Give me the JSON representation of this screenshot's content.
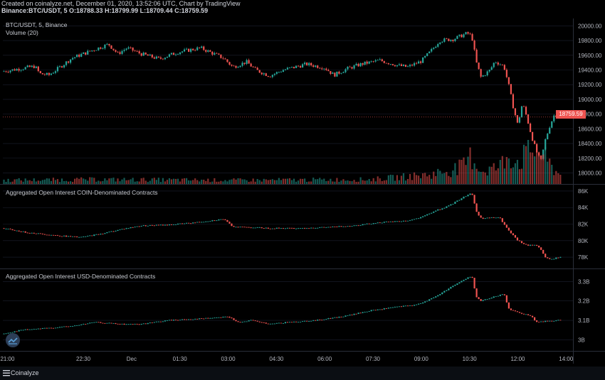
{
  "meta": {
    "line1": "Created on coinalyze.net, December 01, 2020, 13:52:06 UTC, Chart by TradingView",
    "line2": "Binance:BTC/USDT, 5 O:18788.33 H:18799.99 L:18709.44 C:18759.59"
  },
  "footer": {
    "brand": "Coinalyze"
  },
  "colors": {
    "up": "#26a69a",
    "down": "#ef5350",
    "grid": "#1c2030",
    "bg": "#000000"
  },
  "chart_data": [
    {
      "type": "candlestick",
      "title": "BTC/USDT, 5, Binance",
      "subtitle": "Volume (20)",
      "ylim": [
        17850,
        20100
      ],
      "yticks": [
        {
          "v": 20000,
          "label": "20000.00"
        },
        {
          "v": 19800,
          "label": "19800.00"
        },
        {
          "v": 19600,
          "label": "19600.00"
        },
        {
          "v": 19400,
          "label": "19400.00"
        },
        {
          "v": 19200,
          "label": "19200.00"
        },
        {
          "v": 19000,
          "label": "19000.00"
        },
        {
          "v": 18800,
          "label": "18800.00"
        },
        {
          "v": 18600,
          "label": "18600.00"
        },
        {
          "v": 18400,
          "label": "18400.00"
        },
        {
          "v": 18200,
          "label": "18200.00"
        },
        {
          "v": 18000,
          "label": "18000.00"
        }
      ],
      "last_price": 18759.59,
      "last_price_label": "18759.59",
      "series": [
        {
          "t": 0,
          "v": 19380
        },
        {
          "t": 4,
          "v": 19420
        },
        {
          "t": 7,
          "v": 19450
        },
        {
          "t": 8,
          "v": 19350
        },
        {
          "t": 10,
          "v": 19330
        },
        {
          "t": 12,
          "v": 19420
        },
        {
          "t": 15,
          "v": 19560
        },
        {
          "t": 20,
          "v": 19680
        },
        {
          "t": 23,
          "v": 19750
        },
        {
          "t": 25,
          "v": 19620
        },
        {
          "t": 27,
          "v": 19700
        },
        {
          "t": 30,
          "v": 19620
        },
        {
          "t": 34,
          "v": 19550
        },
        {
          "t": 38,
          "v": 19640
        },
        {
          "t": 43,
          "v": 19700
        },
        {
          "t": 48,
          "v": 19560
        },
        {
          "t": 50,
          "v": 19440
        },
        {
          "t": 53,
          "v": 19510
        },
        {
          "t": 55,
          "v": 19400
        },
        {
          "t": 58,
          "v": 19320
        },
        {
          "t": 61,
          "v": 19400
        },
        {
          "t": 66,
          "v": 19480
        },
        {
          "t": 70,
          "v": 19430
        },
        {
          "t": 72,
          "v": 19330
        },
        {
          "t": 75,
          "v": 19420
        },
        {
          "t": 78,
          "v": 19480
        },
        {
          "t": 82,
          "v": 19530
        },
        {
          "t": 86,
          "v": 19460
        },
        {
          "t": 88,
          "v": 19440
        },
        {
          "t": 91,
          "v": 19520
        },
        {
          "t": 93,
          "v": 19650
        },
        {
          "t": 95,
          "v": 19800
        },
        {
          "t": 98,
          "v": 19820
        },
        {
          "t": 101,
          "v": 19900
        },
        {
          "t": 102,
          "v": 19860
        },
        {
          "t": 103,
          "v": 19500
        },
        {
          "t": 104,
          "v": 19300
        },
        {
          "t": 106,
          "v": 19400
        },
        {
          "t": 107,
          "v": 19520
        },
        {
          "t": 109,
          "v": 19450
        },
        {
          "t": 110,
          "v": 19200
        },
        {
          "t": 111,
          "v": 18900
        },
        {
          "t": 112,
          "v": 18650
        },
        {
          "t": 113,
          "v": 18950
        },
        {
          "t": 114,
          "v": 18750
        },
        {
          "t": 115,
          "v": 18500
        },
        {
          "t": 116,
          "v": 18300
        },
        {
          "t": 117,
          "v": 18150
        },
        {
          "t": 118,
          "v": 18450
        },
        {
          "t": 119,
          "v": 18650
        },
        {
          "t": 120,
          "v": 18800
        },
        {
          "t": 121,
          "v": 18760
        }
      ],
      "volume": [
        {
          "t": 0,
          "v": 0.1
        },
        {
          "t": 20,
          "v": 0.12
        },
        {
          "t": 50,
          "v": 0.1
        },
        {
          "t": 80,
          "v": 0.12
        },
        {
          "t": 93,
          "v": 0.25
        },
        {
          "t": 100,
          "v": 0.45
        },
        {
          "t": 102,
          "v": 0.75
        },
        {
          "t": 104,
          "v": 0.35
        },
        {
          "t": 108,
          "v": 0.45
        },
        {
          "t": 110,
          "v": 0.8
        },
        {
          "t": 112,
          "v": 0.6
        },
        {
          "t": 116,
          "v": 1.0
        },
        {
          "t": 118,
          "v": 0.65
        },
        {
          "t": 121,
          "v": 0.25
        }
      ]
    },
    {
      "type": "candlestick",
      "title": "Aggregated Open Interest COIN-Denominated Contracts",
      "ylim": [
        76800,
        86600
      ],
      "yticks": [
        {
          "v": 86000,
          "label": "86K"
        },
        {
          "v": 84000,
          "label": "84K"
        },
        {
          "v": 82000,
          "label": "82K"
        },
        {
          "v": 80000,
          "label": "80K"
        },
        {
          "v": 78000,
          "label": "78K"
        }
      ],
      "series": [
        {
          "t": 0,
          "v": 81500
        },
        {
          "t": 5,
          "v": 81000
        },
        {
          "t": 12,
          "v": 80600
        },
        {
          "t": 17,
          "v": 80400
        },
        {
          "t": 22,
          "v": 80900
        },
        {
          "t": 26,
          "v": 81400
        },
        {
          "t": 30,
          "v": 81800
        },
        {
          "t": 36,
          "v": 81900
        },
        {
          "t": 42,
          "v": 82200
        },
        {
          "t": 48,
          "v": 82600
        },
        {
          "t": 50,
          "v": 81700
        },
        {
          "t": 54,
          "v": 81600
        },
        {
          "t": 58,
          "v": 81500
        },
        {
          "t": 64,
          "v": 81500
        },
        {
          "t": 70,
          "v": 81600
        },
        {
          "t": 76,
          "v": 81800
        },
        {
          "t": 82,
          "v": 82200
        },
        {
          "t": 88,
          "v": 82400
        },
        {
          "t": 91,
          "v": 82800
        },
        {
          "t": 94,
          "v": 83600
        },
        {
          "t": 97,
          "v": 84200
        },
        {
          "t": 100,
          "v": 85200
        },
        {
          "t": 102,
          "v": 85800
        },
        {
          "t": 103,
          "v": 83500
        },
        {
          "t": 104,
          "v": 82700
        },
        {
          "t": 108,
          "v": 82800
        },
        {
          "t": 110,
          "v": 81200
        },
        {
          "t": 112,
          "v": 80000
        },
        {
          "t": 114,
          "v": 79400
        },
        {
          "t": 116,
          "v": 79500
        },
        {
          "t": 117,
          "v": 78900
        },
        {
          "t": 118,
          "v": 78000
        },
        {
          "t": 119,
          "v": 77700
        },
        {
          "t": 121,
          "v": 78000
        }
      ]
    },
    {
      "type": "candlestick",
      "title": "Aggregated Open Interest USD-Denominated Contracts",
      "ylim": [
        2.95,
        3.36
      ],
      "yticks": [
        {
          "v": 3.3,
          "label": "3.3B"
        },
        {
          "v": 3.2,
          "label": "3.2B"
        },
        {
          "v": 3.1,
          "label": "3.1B"
        },
        {
          "v": 3.0,
          "label": "3B"
        }
      ],
      "series": [
        {
          "t": 0,
          "v": 3.03
        },
        {
          "t": 4,
          "v": 3.05
        },
        {
          "t": 10,
          "v": 3.06
        },
        {
          "t": 15,
          "v": 3.07
        },
        {
          "t": 20,
          "v": 3.09
        },
        {
          "t": 26,
          "v": 3.08
        },
        {
          "t": 30,
          "v": 3.08
        },
        {
          "t": 36,
          "v": 3.1
        },
        {
          "t": 44,
          "v": 3.11
        },
        {
          "t": 49,
          "v": 3.12
        },
        {
          "t": 51,
          "v": 3.09
        },
        {
          "t": 54,
          "v": 3.1
        },
        {
          "t": 58,
          "v": 3.08
        },
        {
          "t": 62,
          "v": 3.09
        },
        {
          "t": 68,
          "v": 3.1
        },
        {
          "t": 74,
          "v": 3.12
        },
        {
          "t": 80,
          "v": 3.15
        },
        {
          "t": 86,
          "v": 3.17
        },
        {
          "t": 90,
          "v": 3.18
        },
        {
          "t": 94,
          "v": 3.22
        },
        {
          "t": 98,
          "v": 3.28
        },
        {
          "t": 102,
          "v": 3.33
        },
        {
          "t": 103,
          "v": 3.22
        },
        {
          "t": 104,
          "v": 3.2
        },
        {
          "t": 108,
          "v": 3.23
        },
        {
          "t": 109,
          "v": 3.24
        },
        {
          "t": 110,
          "v": 3.16
        },
        {
          "t": 112,
          "v": 3.14
        },
        {
          "t": 114,
          "v": 3.13
        },
        {
          "t": 115,
          "v": 3.12
        },
        {
          "t": 116,
          "v": 3.09
        },
        {
          "t": 118,
          "v": 3.095
        },
        {
          "t": 121,
          "v": 3.1
        }
      ]
    }
  ],
  "xaxis": {
    "ticks": [
      {
        "t": 1,
        "label": "21:00"
      },
      {
        "t": 17.5,
        "label": "22:30"
      },
      {
        "t": 28,
        "label": "Dec"
      },
      {
        "t": 38.5,
        "label": "01:30"
      },
      {
        "t": 49,
        "label": "03:00"
      },
      {
        "t": 59.5,
        "label": "04:30"
      },
      {
        "t": 70,
        "label": "06:00"
      },
      {
        "t": 80.5,
        "label": "07:30"
      },
      {
        "t": 91,
        "label": "09:00"
      },
      {
        "t": 101.5,
        "label": "10:30"
      },
      {
        "t": 112,
        "label": "12:00"
      },
      {
        "t": 122.5,
        "label": "14:00"
      }
    ],
    "t_max": 124
  }
}
